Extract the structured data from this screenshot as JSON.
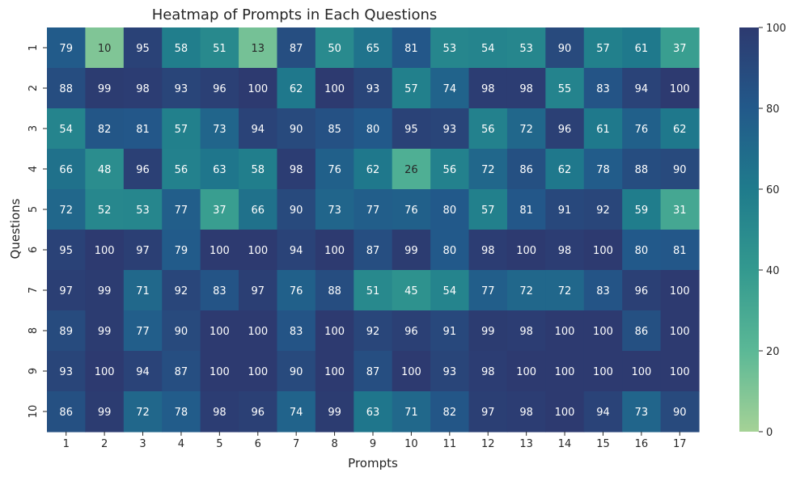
{
  "chart_data": {
    "type": "heatmap",
    "title": "Heatmap of Prompts in Each Questions",
    "xlabel": "Prompts",
    "ylabel": "Questions",
    "x_categories": [
      "1",
      "2",
      "3",
      "4",
      "5",
      "6",
      "7",
      "8",
      "9",
      "10",
      "11",
      "12",
      "13",
      "14",
      "15",
      "16",
      "17"
    ],
    "y_categories": [
      "1",
      "2",
      "3",
      "4",
      "5",
      "6",
      "7",
      "8",
      "9",
      "10"
    ],
    "values": [
      [
        79,
        10,
        95,
        58,
        51,
        13,
        87,
        50,
        65,
        81,
        53,
        54,
        53,
        90,
        57,
        61,
        37
      ],
      [
        88,
        99,
        98,
        93,
        96,
        100,
        62,
        100,
        93,
        57,
        74,
        98,
        98,
        55,
        83,
        94,
        100
      ],
      [
        54,
        82,
        81,
        57,
        73,
        94,
        90,
        85,
        80,
        95,
        93,
        56,
        72,
        96,
        61,
        76,
        62
      ],
      [
        66,
        48,
        96,
        56,
        63,
        58,
        98,
        76,
        62,
        26,
        56,
        72,
        86,
        62,
        78,
        88,
        90
      ],
      [
        72,
        52,
        53,
        77,
        37,
        66,
        90,
        73,
        77,
        76,
        80,
        57,
        81,
        91,
        92,
        59,
        31
      ],
      [
        95,
        100,
        97,
        79,
        100,
        100,
        94,
        100,
        87,
        99,
        80,
        98,
        100,
        98,
        100,
        80,
        81
      ],
      [
        97,
        99,
        71,
        92,
        83,
        97,
        76,
        88,
        51,
        45,
        54,
        77,
        72,
        72,
        83,
        96,
        100
      ],
      [
        89,
        99,
        77,
        90,
        100,
        100,
        83,
        100,
        92,
        96,
        91,
        99,
        98,
        100,
        100,
        86,
        100
      ],
      [
        93,
        100,
        94,
        87,
        100,
        100,
        90,
        100,
        87,
        100,
        93,
        98,
        100,
        100,
        100,
        100,
        100
      ],
      [
        86,
        99,
        72,
        78,
        98,
        96,
        74,
        99,
        63,
        71,
        82,
        97,
        98,
        100,
        94,
        73,
        90
      ]
    ],
    "colorbar": {
      "min": 0,
      "max": 100,
      "ticks": [
        0,
        20,
        40,
        60,
        80,
        100
      ],
      "colormap": "crest",
      "colors": [
        "#a5d296",
        "#5bb896",
        "#33998f",
        "#1f7b8c",
        "#22598a",
        "#2d3a70"
      ]
    },
    "annotation_threshold": 30,
    "annotation_colors": {
      "light": "#ffffff",
      "dark": "#262626"
    }
  }
}
